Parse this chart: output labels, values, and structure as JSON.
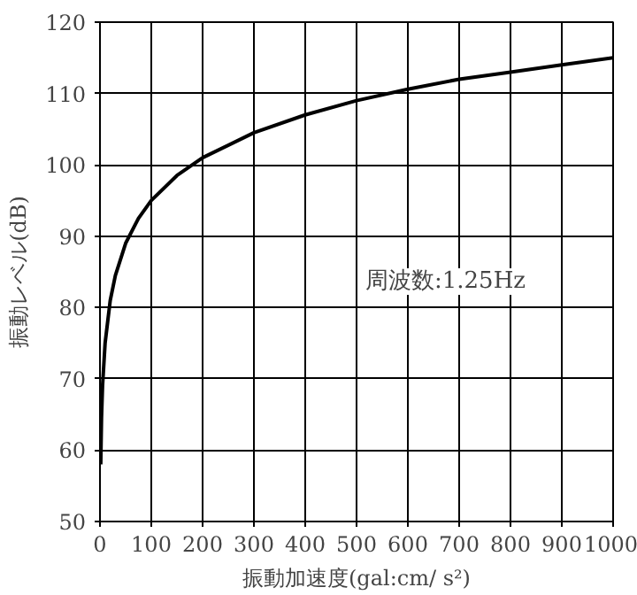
{
  "chart_data": {
    "type": "line",
    "xlabel": "振動加速度(gal:cm/ s²)",
    "ylabel": "振動レベル(dB)",
    "annotations": [
      "周波数:1.25Hz"
    ],
    "x": [
      1.5,
      3,
      5,
      10,
      20,
      30,
      50,
      75,
      100,
      150,
      200,
      300,
      400,
      500,
      600,
      700,
      800,
      900,
      1000
    ],
    "series": [
      {
        "color": "#000000",
        "values": [
          58,
          64.5,
          69,
          75,
          81,
          84.5,
          89,
          92.5,
          95,
          98.5,
          101,
          104.5,
          107,
          109,
          110.6,
          112,
          113,
          114,
          115
        ]
      }
    ],
    "xlim": [
      0,
      1000
    ],
    "ylim": [
      50,
      120
    ],
    "xticks": [
      0,
      100,
      200,
      300,
      400,
      500,
      600,
      700,
      800,
      900,
      1000
    ],
    "yticks": [
      50,
      60,
      70,
      80,
      90,
      100,
      110,
      120
    ],
    "grid": true,
    "marker": "none",
    "line_style": "solid"
  }
}
